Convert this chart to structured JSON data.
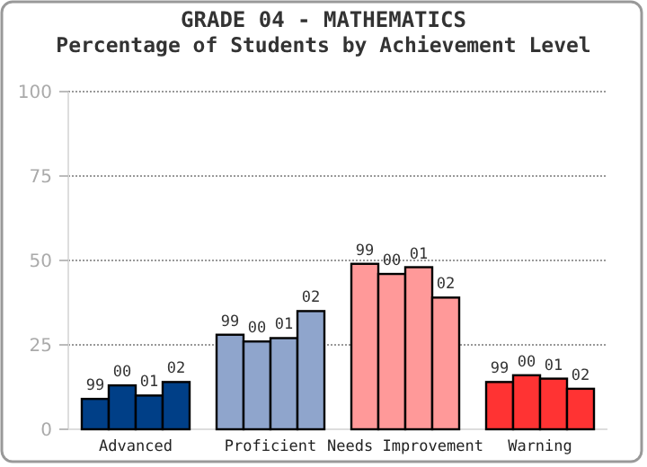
{
  "chart_data": {
    "type": "bar",
    "title": "GRADE 04 - MATHEMATICS",
    "subtitle": "Percentage of Students by Achievement Level",
    "categories": [
      "Advanced",
      "Proficient",
      "Needs Improvement",
      "Warning"
    ],
    "series": [
      {
        "name": "99",
        "colors": [
          "#003f87",
          "#8fa5cc",
          "#ff9999",
          "#ff3333"
        ],
        "values": [
          9,
          28,
          49,
          14
        ]
      },
      {
        "name": "00",
        "colors": [
          "#003f87",
          "#8fa5cc",
          "#ff9999",
          "#ff3333"
        ],
        "values": [
          13,
          26,
          46,
          16
        ]
      },
      {
        "name": "01",
        "colors": [
          "#003f87",
          "#8fa5cc",
          "#ff9999",
          "#ff3333"
        ],
        "values": [
          10,
          27,
          48,
          15
        ]
      },
      {
        "name": "02",
        "colors": [
          "#003f87",
          "#8fa5cc",
          "#ff9999",
          "#ff3333"
        ],
        "values": [
          14,
          35,
          39,
          12
        ]
      }
    ],
    "ylim": [
      0,
      100
    ],
    "yticks": [
      0,
      25,
      50,
      75,
      100
    ],
    "grid": "y"
  }
}
